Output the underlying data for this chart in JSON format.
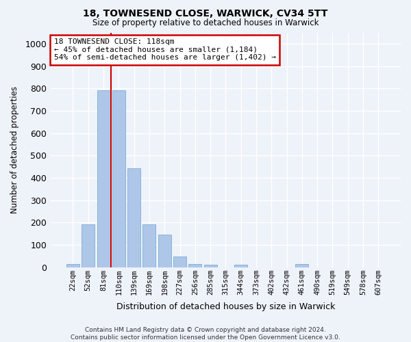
{
  "title1": "18, TOWNESEND CLOSE, WARWICK, CV34 5TT",
  "title2": "Size of property relative to detached houses in Warwick",
  "xlabel": "Distribution of detached houses by size in Warwick",
  "ylabel": "Number of detached properties",
  "categories": [
    "22sqm",
    "52sqm",
    "81sqm",
    "110sqm",
    "139sqm",
    "169sqm",
    "198sqm",
    "227sqm",
    "256sqm",
    "285sqm",
    "315sqm",
    "344sqm",
    "373sqm",
    "402sqm",
    "432sqm",
    "461sqm",
    "490sqm",
    "519sqm",
    "549sqm",
    "578sqm",
    "607sqm"
  ],
  "values": [
    15,
    193,
    790,
    790,
    443,
    193,
    145,
    48,
    13,
    10,
    0,
    10,
    0,
    0,
    0,
    15,
    0,
    0,
    0,
    0,
    0
  ],
  "bar_color": "#aec6e8",
  "bar_edge_color": "#7aafd4",
  "vline_x_index": 2.5,
  "vline_color": "#cc0000",
  "annotation_text": "18 TOWNESEND CLOSE: 118sqm\n← 45% of detached houses are smaller (1,184)\n54% of semi-detached houses are larger (1,402) →",
  "annotation_box_color": "#ffffff",
  "annotation_box_edge_color": "#cc0000",
  "bg_color": "#eef2f9",
  "grid_color": "#ffffff",
  "ylim": [
    0,
    1050
  ],
  "yticks": [
    0,
    100,
    200,
    300,
    400,
    500,
    600,
    700,
    800,
    900,
    1000
  ],
  "footer": "Contains HM Land Registry data © Crown copyright and database right 2024.\nContains public sector information licensed under the Open Government Licence v3.0."
}
